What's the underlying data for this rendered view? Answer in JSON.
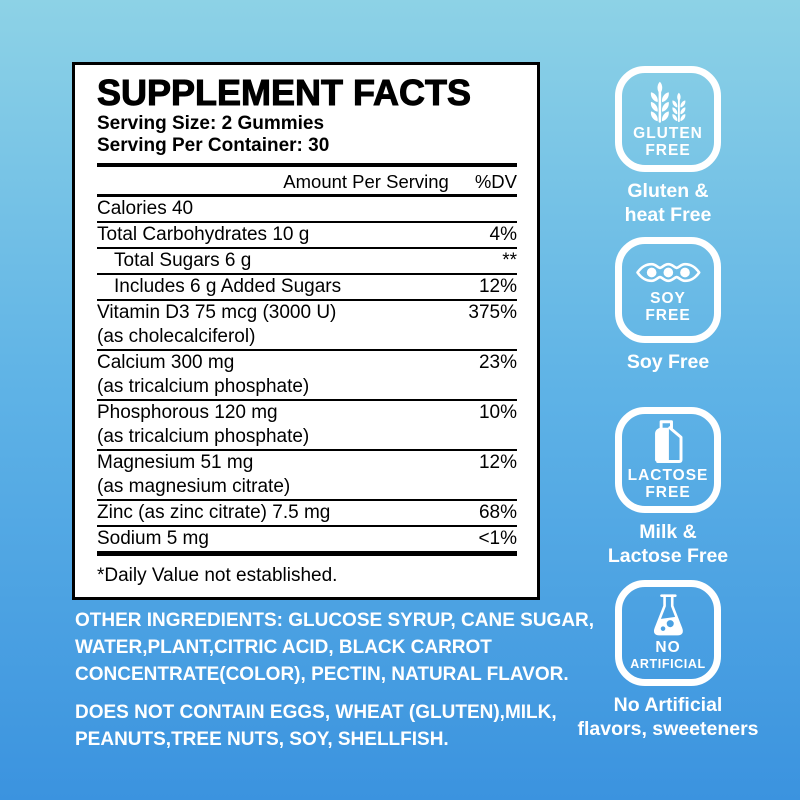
{
  "colors": {
    "bg_top": "#8dd2e6",
    "bg_mid": "#5fb3e6",
    "bg_bottom": "#3b93df",
    "panel_bg": "#ffffff",
    "ink": "#000000",
    "light": "#ffffff"
  },
  "panel": {
    "title": "SUPPLEMENT FACTS",
    "serving_size": "Serving Size: 2 Gummies",
    "serving_per_container": "Serving Per Container: 30",
    "columns": {
      "amount": "Amount Per Serving",
      "dv": "%DV"
    },
    "rows": [
      {
        "name": "Calories 40",
        "sub": "",
        "dv": "",
        "indent": false
      },
      {
        "name": "Total Carbohydrates 10 g",
        "sub": "",
        "dv": "4%",
        "indent": false
      },
      {
        "name": "Total Sugars 6 g",
        "sub": "",
        "dv": "**",
        "indent": true
      },
      {
        "name": "Includes 6 g Added Sugars",
        "sub": "",
        "dv": "12%",
        "indent": true
      },
      {
        "name": "Vitamin D3 75 mcg (3000 U)",
        "sub": "(as cholecalciferol)",
        "dv": "375%",
        "indent": false
      },
      {
        "name": "Calcium 300 mg",
        "sub": "(as tricalcium phosphate)",
        "dv": "23%",
        "indent": false
      },
      {
        "name": "Phosphorous 120 mg",
        "sub": "(as tricalcium phosphate)",
        "dv": "10%",
        "indent": false
      },
      {
        "name": "Magnesium 51 mg",
        "sub": "(as magnesium citrate)",
        "dv": "12%",
        "indent": false
      },
      {
        "name": "Zinc (as zinc citrate) 7.5 mg",
        "sub": "",
        "dv": "68%",
        "indent": false
      },
      {
        "name": "Sodium 5 mg",
        "sub": "",
        "dv": "<1%",
        "indent": false
      }
    ],
    "footnote": "*Daily Value not established."
  },
  "ingredients": {
    "other_lines": [
      "OTHER INGREDIENTS: GLUCOSE SYRUP, CANE SUGAR,",
      "WATER,PLANT,CITRIC ACID, BLACK CARROT",
      "CONCENTRATE(COLOR), PECTIN, NATURAL FLAVOR."
    ],
    "does_not_contain_lines": [
      "DOES NOT CONTAIN EGGS, WHEAT (GLUTEN),MILK,",
      "PEANUTS,TREE NUTS, SOY, SHELLFISH."
    ]
  },
  "badges": [
    {
      "icon": "wheat-icon",
      "line1": "GLUTEN",
      "line2": "FREE",
      "caption1": "Gluten &",
      "caption2": "heat Free"
    },
    {
      "icon": "soy-pod-icon",
      "line1": "SOY",
      "line2": "FREE",
      "caption1": "Soy Free",
      "caption2": ""
    },
    {
      "icon": "milk-carton-icon",
      "line1": "LACTOSE",
      "line2": "FREE",
      "caption1": "Milk &",
      "caption2": "Lactose Free"
    },
    {
      "icon": "flask-icon",
      "line1": "NO",
      "line2": "ARTIFICIAL",
      "caption1": "No Artificial",
      "caption2": "flavors, sweeteners"
    }
  ]
}
